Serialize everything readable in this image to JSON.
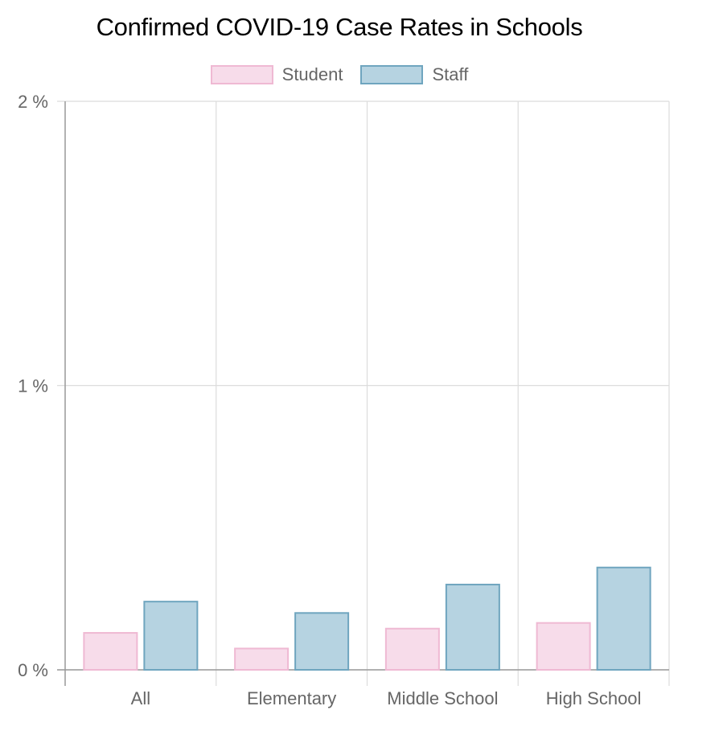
{
  "chart_data": {
    "type": "bar",
    "title": "Confirmed COVID-19 Case Rates in Schools",
    "categories": [
      "All",
      "Elementary",
      "Middle School",
      "High School"
    ],
    "series": [
      {
        "name": "Student",
        "values": [
          0.13,
          0.075,
          0.145,
          0.165
        ],
        "fill": "#f7dcea",
        "stroke": "#efb9d3"
      },
      {
        "name": "Staff",
        "values": [
          0.24,
          0.2,
          0.3,
          0.36
        ],
        "fill": "#b6d3e1",
        "stroke": "#6fa5bf"
      }
    ],
    "y_ticks": [
      "0 %",
      "1 %",
      "2 %"
    ],
    "y_tick_values": [
      0,
      1,
      2
    ],
    "ylim": [
      0,
      2
    ],
    "grid": true,
    "legend_position": "top"
  }
}
